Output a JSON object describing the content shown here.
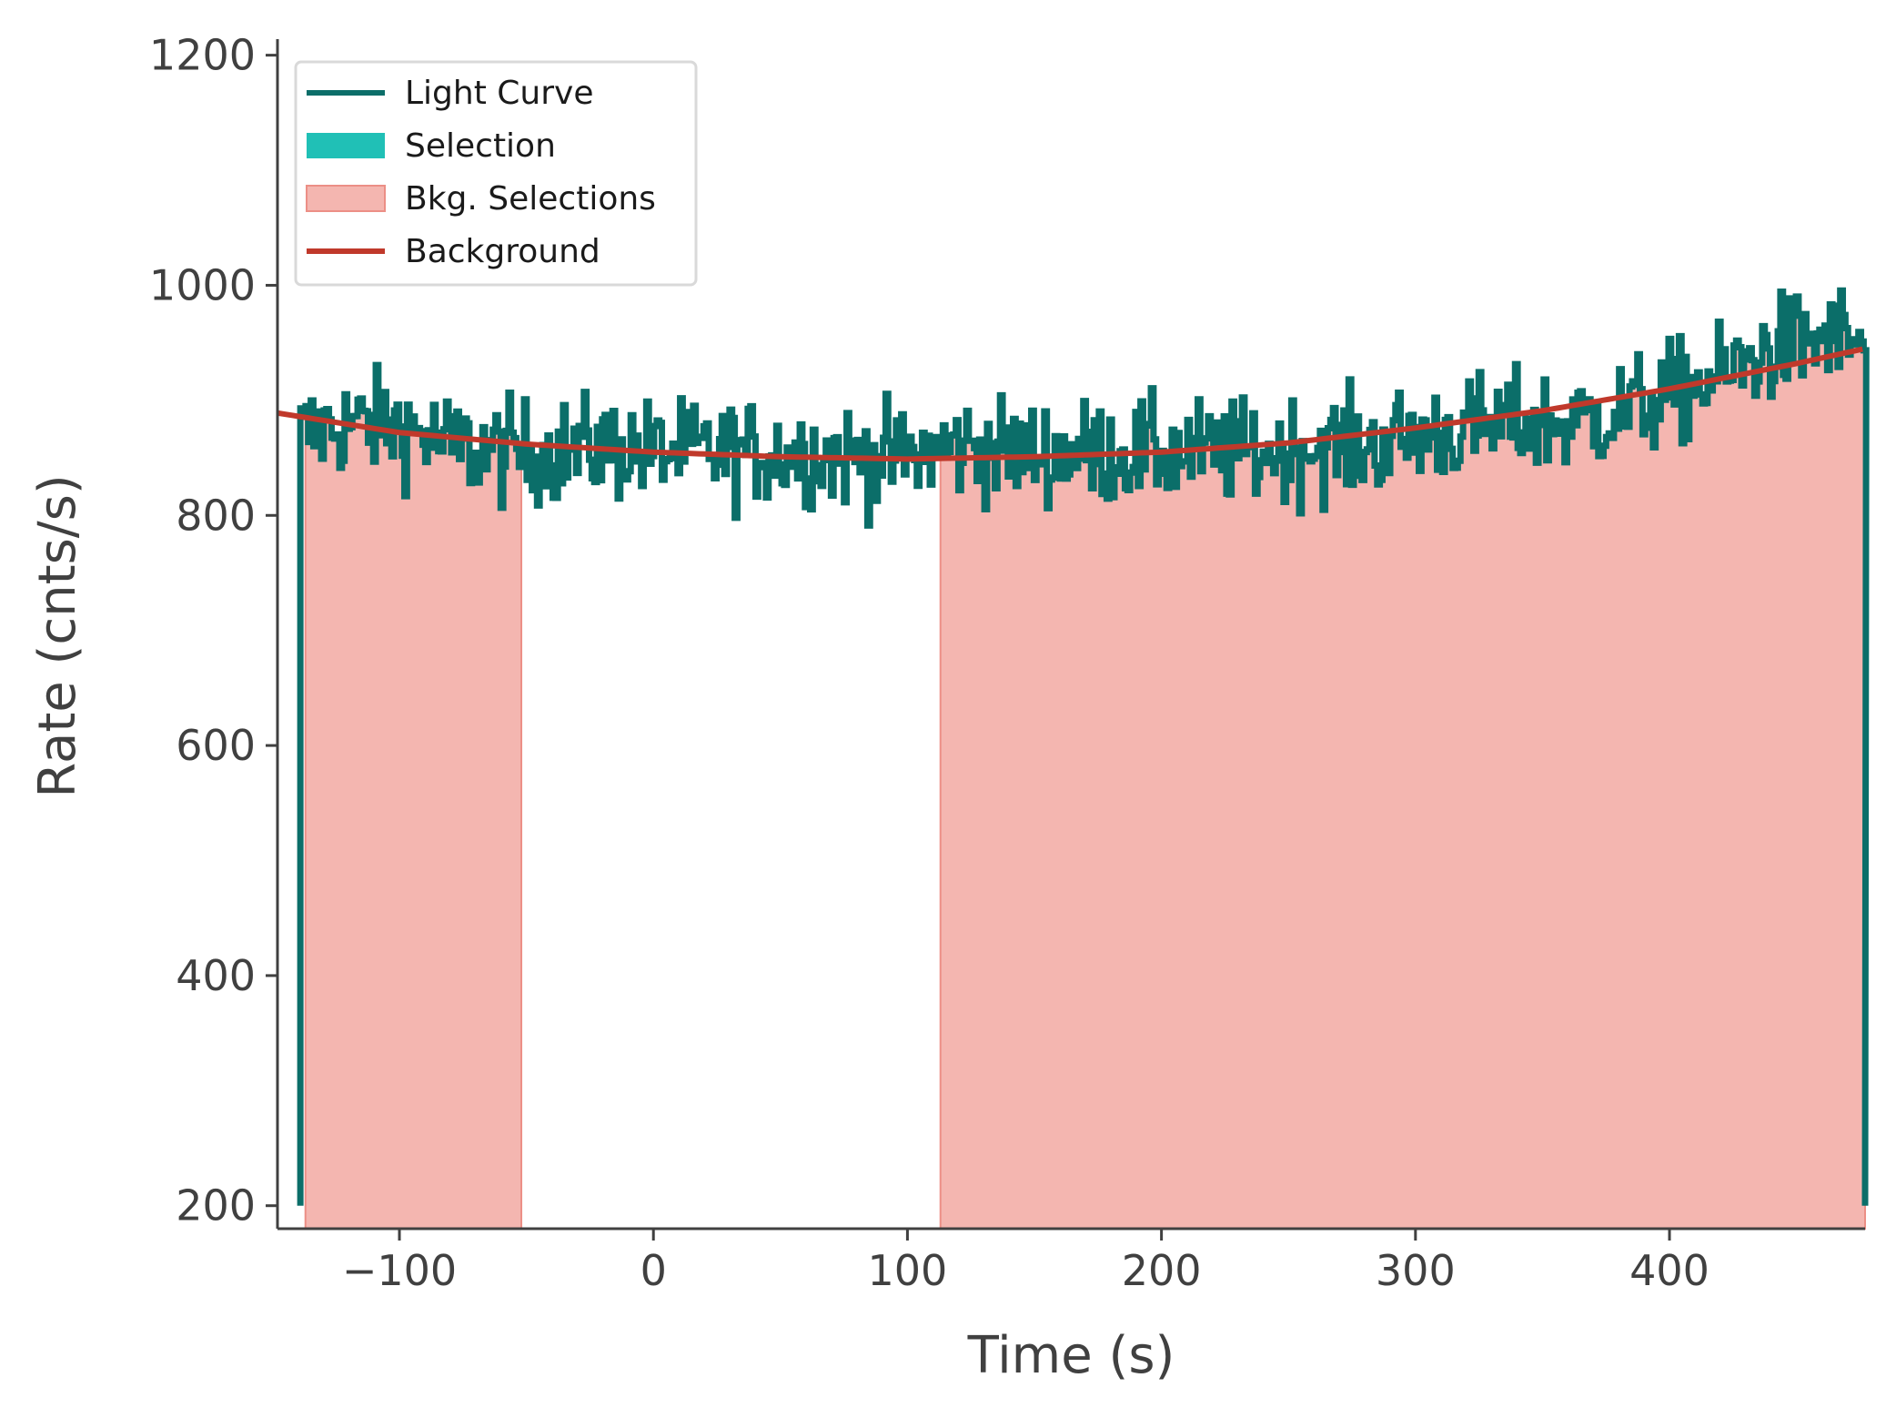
{
  "chart_data": {
    "type": "line",
    "xlabel": "Time (s)",
    "ylabel": "Rate (cnts/s)",
    "xlim": [
      -148,
      477
    ],
    "ylim": [
      180,
      1210
    ],
    "xticks": [
      -100,
      0,
      100,
      200,
      300,
      400
    ],
    "xtick_labels": [
      "−100",
      "0",
      "100",
      "200",
      "300",
      "400"
    ],
    "yticks": [
      200,
      400,
      600,
      800,
      1000,
      1200
    ],
    "ytick_labels": [
      "200",
      "400",
      "600",
      "800",
      "1000",
      "1200"
    ],
    "grid": false,
    "legend_position": "upper-left",
    "legend": [
      {
        "label": "Light Curve",
        "kind": "line",
        "color": "#0b6e69"
      },
      {
        "label": "Selection",
        "kind": "patch",
        "color": "#20c0b6"
      },
      {
        "label": "Bkg. Selections",
        "kind": "patch",
        "color": "#f4b6b0"
      },
      {
        "label": "Background",
        "kind": "line",
        "color": "#c0392b"
      }
    ],
    "bkg_selections": [
      [
        -137,
        -52
      ],
      [
        113,
        477
      ]
    ],
    "background_fit": {
      "x": [
        -148,
        -100,
        -50,
        0,
        50,
        100,
        150,
        200,
        250,
        300,
        350,
        400,
        450,
        477
      ],
      "y": [
        889,
        872,
        862,
        855,
        851,
        849,
        851,
        855,
        863,
        876,
        891,
        910,
        932,
        945
      ]
    },
    "light_curve": {
      "series_name": "Light Curve",
      "x_start": -139,
      "x_end": 477,
      "bin_width": 1.024,
      "edge_low": 200,
      "level_points": {
        "x": [
          -139,
          -120,
          -100,
          -80,
          -60,
          -40,
          -20,
          0,
          20,
          40,
          60,
          80,
          100,
          120,
          140,
          160,
          180,
          200,
          220,
          240,
          260,
          280,
          300,
          320,
          340,
          360,
          380,
          400,
          420,
          440,
          460,
          477
        ],
        "y": [
          870,
          880,
          878,
          860,
          855,
          855,
          860,
          855,
          855,
          855,
          855,
          850,
          850,
          860,
          855,
          855,
          855,
          855,
          855,
          855,
          860,
          860,
          870,
          875,
          880,
          880,
          890,
          905,
          920,
          945,
          955,
          950
        ]
      },
      "noise_amplitude": 30
    }
  }
}
